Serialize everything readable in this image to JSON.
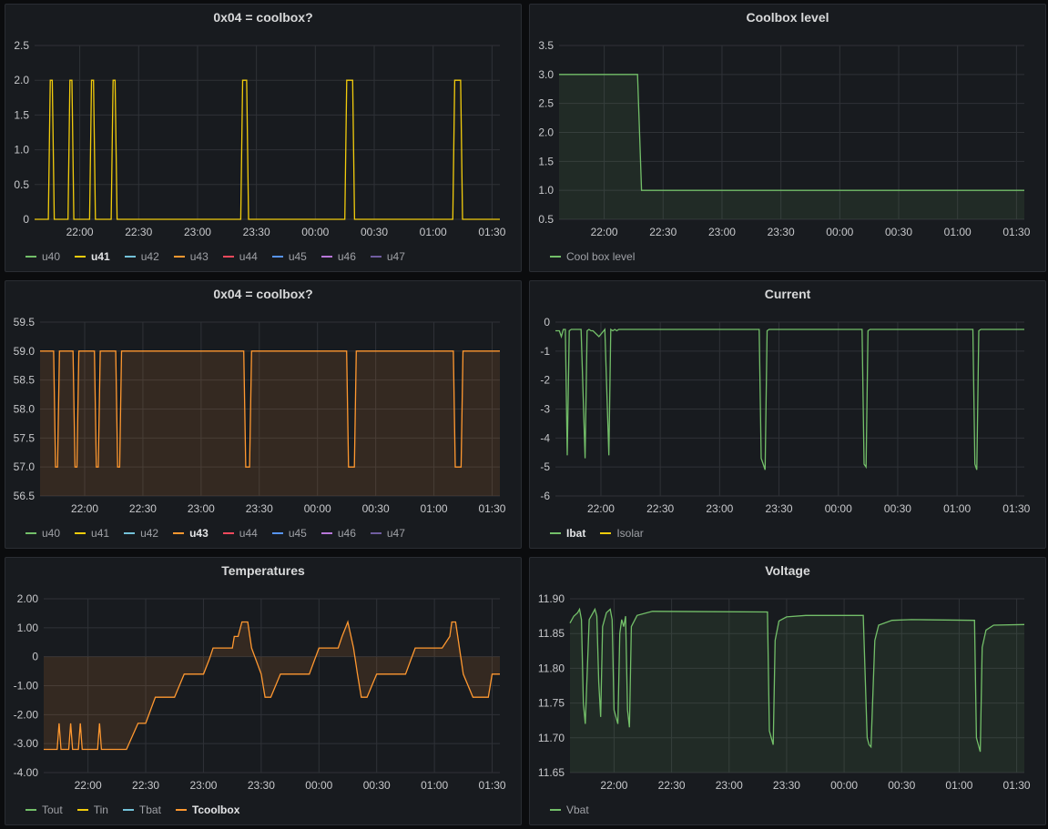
{
  "colors": {
    "green": "#73bf69",
    "yellow": "#f2cc0c",
    "orange": "#ff9830",
    "teal": "#5794f2",
    "cyan": "#8ab8ff",
    "red": "#f2495c",
    "purple": "#b877d9",
    "violet": "#8f3bb8"
  },
  "x_ticks": [
    "22:00",
    "22:30",
    "23:00",
    "23:30",
    "00:00",
    "00:30",
    "01:00",
    "01:30"
  ],
  "x_range": [
    "21:37",
    "01:34"
  ],
  "panels": [
    {
      "id": "p1",
      "title": "0x04 = coolbox?",
      "legend": [
        {
          "label": "u40",
          "color": "#73bf69",
          "active": false
        },
        {
          "label": "u41",
          "color": "#f2cc0c",
          "active": true
        },
        {
          "label": "u42",
          "color": "#73c2d9",
          "active": false
        },
        {
          "label": "u43",
          "color": "#ff9830",
          "active": false
        },
        {
          "label": "u44",
          "color": "#f2495c",
          "active": false
        },
        {
          "label": "u45",
          "color": "#5794f2",
          "active": false
        },
        {
          "label": "u46",
          "color": "#b877d9",
          "active": false
        },
        {
          "label": "u47",
          "color": "#705da0",
          "active": false
        }
      ]
    },
    {
      "id": "p2",
      "title": "Coolbox level",
      "legend": [
        {
          "label": "Cool box level",
          "color": "#73bf69",
          "active": false
        }
      ]
    },
    {
      "id": "p3",
      "title": "0x04 = coolbox?",
      "legend": [
        {
          "label": "u40",
          "color": "#73bf69",
          "active": false
        },
        {
          "label": "u41",
          "color": "#f2cc0c",
          "active": false
        },
        {
          "label": "u42",
          "color": "#73c2d9",
          "active": false
        },
        {
          "label": "u43",
          "color": "#ff9830",
          "active": true
        },
        {
          "label": "u44",
          "color": "#f2495c",
          "active": false
        },
        {
          "label": "u45",
          "color": "#5794f2",
          "active": false
        },
        {
          "label": "u46",
          "color": "#b877d9",
          "active": false
        },
        {
          "label": "u47",
          "color": "#705da0",
          "active": false
        }
      ]
    },
    {
      "id": "p4",
      "title": "Current",
      "legend": [
        {
          "label": "Ibat",
          "color": "#73bf69",
          "active": true
        },
        {
          "label": "Isolar",
          "color": "#f2cc0c",
          "active": false
        }
      ]
    },
    {
      "id": "p5",
      "title": "Temperatures",
      "legend": [
        {
          "label": "Tout",
          "color": "#73bf69",
          "active": false
        },
        {
          "label": "Tin",
          "color": "#f2cc0c",
          "active": false
        },
        {
          "label": "Tbat",
          "color": "#73c2d9",
          "active": false
        },
        {
          "label": "Tcoolbox",
          "color": "#ff9830",
          "active": true
        }
      ]
    },
    {
      "id": "p6",
      "title": "Voltage",
      "legend": [
        {
          "label": "Vbat",
          "color": "#73bf69",
          "active": false
        }
      ]
    }
  ],
  "chart_data": [
    {
      "type": "line",
      "title": "0x04 = coolbox?",
      "series_name": "u41",
      "y_ticks": [
        "0",
        "0.5",
        "1.0",
        "1.5",
        "2.0",
        "2.5"
      ],
      "ylim": [
        0,
        2.5
      ],
      "x": [
        "21:37",
        "21:44",
        "21:45",
        "21:46",
        "21:47",
        "21:54",
        "21:55",
        "21:56",
        "21:57",
        "22:05",
        "22:06",
        "22:07",
        "22:08",
        "22:16",
        "22:17",
        "22:18",
        "22:19",
        "23:22",
        "23:23",
        "23:25",
        "23:26",
        "00:15",
        "00:16",
        "00:19",
        "00:20",
        "01:10",
        "01:11",
        "01:14",
        "01:15",
        "01:34"
      ],
      "values": [
        0,
        0,
        2,
        2,
        0,
        0,
        2,
        2,
        0,
        0,
        2,
        2,
        0,
        0,
        2,
        2,
        0,
        0,
        2,
        2,
        0,
        0,
        2,
        2,
        0,
        0,
        2,
        2,
        0,
        0
      ]
    },
    {
      "type": "area",
      "title": "Coolbox level",
      "series_name": "Cool box level",
      "y_ticks": [
        "0.5",
        "1.0",
        "1.5",
        "2.0",
        "2.5",
        "3.0",
        "3.5"
      ],
      "ylim": [
        0.5,
        3.5
      ],
      "x": [
        "21:37",
        "22:17",
        "22:19",
        "01:34"
      ],
      "values": [
        3.0,
        3.0,
        1.0,
        1.0
      ]
    },
    {
      "type": "area",
      "title": "0x04 = coolbox?",
      "series_name": "u43",
      "y_ticks": [
        "56.5",
        "57.0",
        "57.5",
        "58.0",
        "58.5",
        "59.0",
        "59.5"
      ],
      "ylim": [
        56.5,
        59.5
      ],
      "x": [
        "21:37",
        "21:44",
        "21:45",
        "21:46",
        "21:47",
        "21:54",
        "21:55",
        "21:56",
        "21:57",
        "22:05",
        "22:06",
        "22:07",
        "22:08",
        "22:16",
        "22:17",
        "22:18",
        "22:19",
        "23:22",
        "23:23",
        "23:25",
        "23:26",
        "00:15",
        "00:16",
        "00:19",
        "00:20",
        "01:10",
        "01:11",
        "01:14",
        "01:15",
        "01:34"
      ],
      "values": [
        59,
        59,
        57,
        57,
        59,
        59,
        57,
        57,
        59,
        59,
        57,
        57,
        59,
        59,
        57,
        57,
        59,
        59,
        57,
        57,
        59,
        59,
        57,
        57,
        59,
        59,
        57,
        57,
        59,
        59
      ]
    },
    {
      "type": "line",
      "title": "Current",
      "series_name": "Ibat",
      "y_ticks": [
        "-6",
        "-5",
        "-4",
        "-3",
        "-2",
        "-1",
        "0"
      ],
      "ylim": [
        -6,
        0
      ],
      "x": [
        "21:37",
        "21:39",
        "21:40",
        "21:41",
        "21:42",
        "21:43",
        "21:44",
        "21:45",
        "21:46",
        "21:47",
        "21:50",
        "21:52",
        "21:53",
        "21:54",
        "21:55",
        "21:56",
        "21:59",
        "22:02",
        "22:04",
        "22:05",
        "22:06",
        "22:07",
        "22:08",
        "22:09",
        "22:10",
        "23:20",
        "23:21",
        "23:22",
        "23:23",
        "23:24",
        "23:25",
        "00:12",
        "00:13",
        "00:14",
        "00:15",
        "00:16",
        "01:08",
        "01:09",
        "01:10",
        "01:11",
        "01:12",
        "01:34"
      ],
      "values": [
        -0.3,
        -0.3,
        -0.5,
        -0.25,
        -0.25,
        -4.6,
        -0.3,
        -0.25,
        -0.25,
        -0.25,
        -0.25,
        -4.7,
        -0.3,
        -0.25,
        -0.3,
        -0.3,
        -0.5,
        -0.25,
        -4.6,
        -0.25,
        -0.3,
        -0.25,
        -0.3,
        -0.25,
        -0.25,
        -0.25,
        -4.7,
        -4.9,
        -5.1,
        -0.3,
        -0.25,
        -0.25,
        -4.9,
        -5.0,
        -0.3,
        -0.25,
        -0.25,
        -4.9,
        -5.1,
        -0.3,
        -0.25,
        -0.25
      ]
    },
    {
      "type": "area",
      "title": "Temperatures",
      "series_name": "Tcoolbox",
      "y_ticks": [
        "-4.00",
        "-3.00",
        "-2.00",
        "-1.00",
        "0",
        "1.00",
        "2.00"
      ],
      "ylim": [
        -4,
        2
      ],
      "x": [
        "21:37",
        "21:44",
        "21:45",
        "21:46",
        "21:50",
        "21:51",
        "21:52",
        "21:55",
        "21:56",
        "21:57",
        "21:59",
        "22:05",
        "22:06",
        "22:07",
        "22:10",
        "22:15",
        "22:20",
        "22:26",
        "22:30",
        "22:35",
        "22:38",
        "22:45",
        "22:50",
        "23:00",
        "23:03",
        "23:05",
        "23:10",
        "23:15",
        "23:16",
        "23:18",
        "23:20",
        "23:23",
        "23:25",
        "23:30",
        "23:32",
        "23:35",
        "23:40",
        "23:45",
        "23:48",
        "23:50",
        "23:55",
        "00:00",
        "00:05",
        "00:10",
        "00:12",
        "00:15",
        "00:18",
        "00:20",
        "00:22",
        "00:25",
        "00:30",
        "00:35",
        "00:40",
        "00:45",
        "00:50",
        "01:00",
        "01:04",
        "01:08",
        "01:09",
        "01:11",
        "01:13",
        "01:15",
        "01:20",
        "01:25",
        "01:28",
        "01:30",
        "01:32",
        "01:34"
      ],
      "values": [
        -3.2,
        -3.2,
        -2.3,
        -3.2,
        -3.2,
        -2.3,
        -3.2,
        -3.2,
        -2.3,
        -3.2,
        -3.2,
        -3.2,
        -2.3,
        -3.2,
        -3.2,
        -3.2,
        -3.2,
        -2.3,
        -2.3,
        -1.4,
        -1.4,
        -1.4,
        -0.6,
        -0.6,
        -0.1,
        0.3,
        0.3,
        0.3,
        0.7,
        0.7,
        1.2,
        1.2,
        0.3,
        -0.6,
        -1.4,
        -1.4,
        -0.6,
        -0.6,
        -0.6,
        -0.6,
        -0.6,
        0.3,
        0.3,
        0.3,
        0.7,
        1.2,
        0.3,
        -0.6,
        -1.4,
        -1.4,
        -0.6,
        -0.6,
        -0.6,
        -0.6,
        0.3,
        0.3,
        0.3,
        0.7,
        1.2,
        1.2,
        0.3,
        -0.6,
        -1.4,
        -1.4,
        -1.4,
        -0.6,
        -0.6,
        -0.6
      ]
    },
    {
      "type": "area",
      "title": "Voltage",
      "series_name": "Vbat",
      "y_ticks": [
        "11.65",
        "11.70",
        "11.75",
        "11.80",
        "11.85",
        "11.90"
      ],
      "ylim": [
        11.65,
        11.9
      ],
      "x": [
        "21:37",
        "21:39",
        "21:41",
        "21:42",
        "21:43",
        "21:44",
        "21:45",
        "21:47",
        "21:50",
        "21:51",
        "21:52",
        "21:53",
        "21:54",
        "21:56",
        "21:58",
        "21:59",
        "22:00",
        "22:02",
        "22:03",
        "22:04",
        "22:05",
        "22:06",
        "22:07",
        "22:08",
        "22:09",
        "22:12",
        "22:20",
        "23:20",
        "23:21",
        "23:22",
        "23:23",
        "23:24",
        "23:26",
        "23:30",
        "23:40",
        "00:10",
        "00:12",
        "00:13",
        "00:14",
        "00:16",
        "00:18",
        "00:25",
        "00:35",
        "01:08",
        "01:09",
        "01:10",
        "01:11",
        "01:12",
        "01:14",
        "01:18",
        "01:34"
      ],
      "values": [
        11.865,
        11.875,
        11.88,
        11.885,
        11.87,
        11.75,
        11.72,
        11.87,
        11.885,
        11.875,
        11.78,
        11.73,
        11.86,
        11.88,
        11.885,
        11.87,
        11.74,
        11.72,
        11.85,
        11.87,
        11.86,
        11.875,
        11.74,
        11.715,
        11.86,
        11.876,
        11.882,
        11.881,
        11.71,
        11.7,
        11.69,
        11.84,
        11.868,
        11.874,
        11.876,
        11.876,
        11.7,
        11.69,
        11.687,
        11.84,
        11.862,
        11.869,
        11.87,
        11.869,
        11.7,
        11.69,
        11.68,
        11.83,
        11.855,
        11.862,
        11.863
      ]
    }
  ]
}
